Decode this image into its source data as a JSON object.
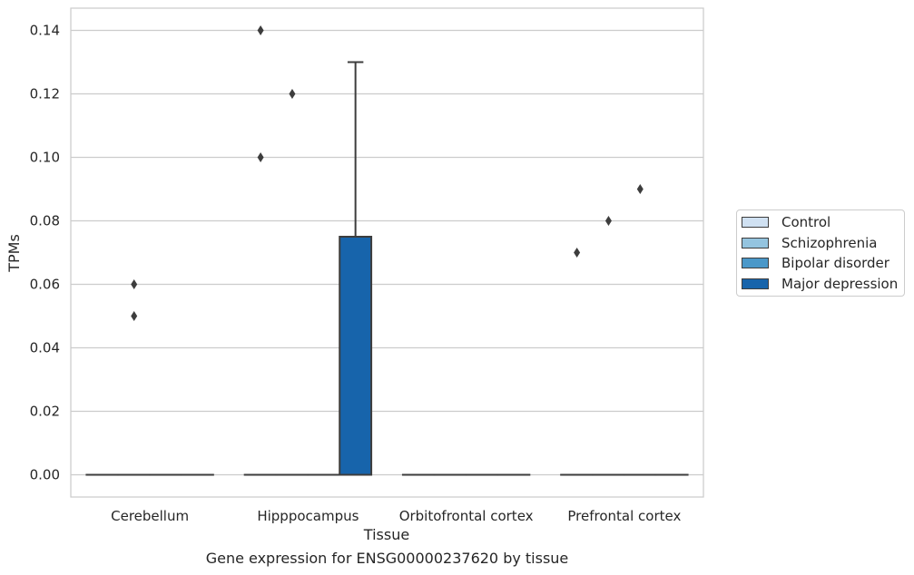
{
  "chart_data": {
    "type": "box",
    "title": "",
    "caption": "Gene expression for ENSG00000237620 by tissue",
    "xlabel": "Tissue",
    "ylabel": "TPMs",
    "ylim": [
      -0.007,
      0.147
    ],
    "yticks": [
      0.0,
      0.02,
      0.04,
      0.06,
      0.08,
      0.1,
      0.12,
      0.14
    ],
    "ytick_labels": [
      "0.00",
      "0.02",
      "0.04",
      "0.06",
      "0.08",
      "0.10",
      "0.12",
      "0.14"
    ],
    "grid": "horizontal",
    "legend_placement": "right-outside",
    "categories": [
      "Cerebellum",
      "Hipppocampus",
      "Orbitofrontal cortex",
      "Prefrontal cortex"
    ],
    "series": [
      {
        "name": "Control",
        "color": "#d0e1f2",
        "boxes": [
          {
            "q1": 0,
            "median": 0,
            "q3": 0,
            "whisker_low": 0,
            "whisker_high": 0,
            "outliers": []
          },
          {
            "q1": 0,
            "median": 0,
            "q3": 0,
            "whisker_low": 0,
            "whisker_high": 0,
            "outliers": [
              0.14,
              0.1
            ]
          },
          {
            "q1": 0,
            "median": 0,
            "q3": 0,
            "whisker_low": 0,
            "whisker_high": 0,
            "outliers": []
          },
          {
            "q1": 0,
            "median": 0,
            "q3": 0,
            "whisker_low": 0,
            "whisker_high": 0,
            "outliers": [
              0.07
            ]
          }
        ]
      },
      {
        "name": "Schizophrenia",
        "color": "#94c4df",
        "boxes": [
          {
            "q1": 0,
            "median": 0,
            "q3": 0,
            "whisker_low": 0,
            "whisker_high": 0,
            "outliers": [
              0.06,
              0.05
            ]
          },
          {
            "q1": 0,
            "median": 0,
            "q3": 0,
            "whisker_low": 0,
            "whisker_high": 0,
            "outliers": [
              0.12
            ]
          },
          {
            "q1": 0,
            "median": 0,
            "q3": 0,
            "whisker_low": 0,
            "whisker_high": 0,
            "outliers": []
          },
          {
            "q1": 0,
            "median": 0,
            "q3": 0,
            "whisker_low": 0,
            "whisker_high": 0,
            "outliers": [
              0.08
            ]
          }
        ]
      },
      {
        "name": "Bipolar disorder",
        "color": "#4a98c9",
        "boxes": [
          {
            "q1": 0,
            "median": 0,
            "q3": 0,
            "whisker_low": 0,
            "whisker_high": 0,
            "outliers": []
          },
          {
            "q1": 0,
            "median": 0,
            "q3": 0,
            "whisker_low": 0,
            "whisker_high": 0,
            "outliers": []
          },
          {
            "q1": 0,
            "median": 0,
            "q3": 0,
            "whisker_low": 0,
            "whisker_high": 0,
            "outliers": []
          },
          {
            "q1": 0,
            "median": 0,
            "q3": 0,
            "whisker_low": 0,
            "whisker_high": 0,
            "outliers": [
              0.09
            ]
          }
        ]
      },
      {
        "name": "Major depression",
        "color": "#1764ab",
        "boxes": [
          {
            "q1": 0,
            "median": 0,
            "q3": 0,
            "whisker_low": 0,
            "whisker_high": 0,
            "outliers": []
          },
          {
            "q1": 0,
            "median": 0,
            "q3": 0.075,
            "whisker_low": 0,
            "whisker_high": 0.13,
            "outliers": []
          },
          {
            "q1": 0,
            "median": 0,
            "q3": 0,
            "whisker_low": 0,
            "whisker_high": 0,
            "outliers": []
          },
          {
            "q1": 0,
            "median": 0,
            "q3": 0,
            "whisker_low": 0,
            "whisker_high": 0,
            "outliers": []
          }
        ]
      }
    ]
  }
}
